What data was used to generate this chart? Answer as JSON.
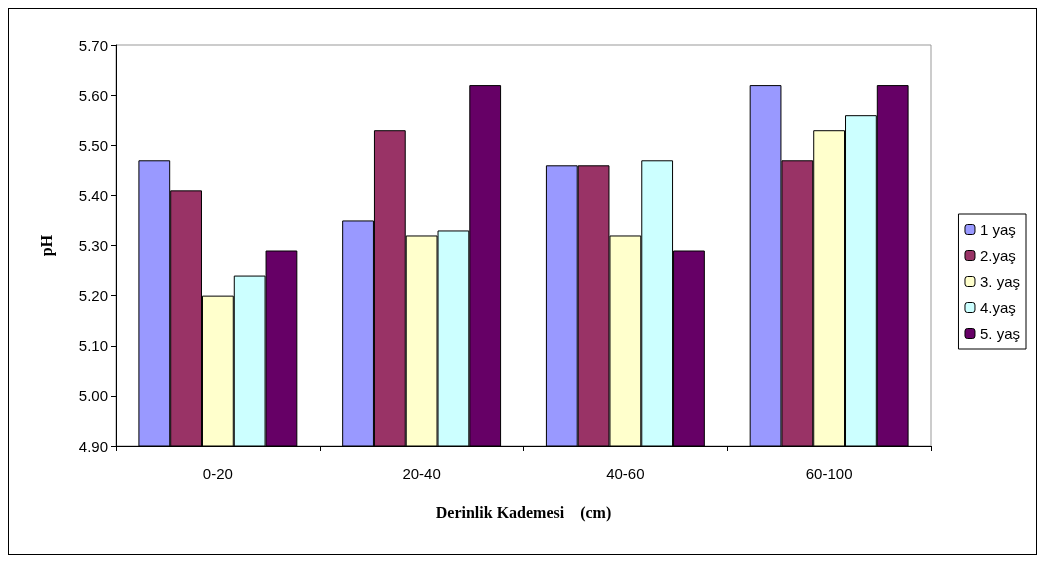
{
  "chart_data": {
    "type": "bar",
    "xlabel": "Derinlik Kademesi    (cm)",
    "ylabel": "pH",
    "categories": [
      "0-20",
      "20-40",
      "40-60",
      "60-100"
    ],
    "series": [
      {
        "name": "1 yaş",
        "color": "#9999ff",
        "values": [
          5.47,
          5.35,
          5.46,
          5.62
        ]
      },
      {
        "name": "2.yaş",
        "color": "#993366",
        "values": [
          5.41,
          5.53,
          5.46,
          5.47
        ]
      },
      {
        "name": "3. yaş",
        "color": "#ffffcc",
        "values": [
          5.2,
          5.32,
          5.32,
          5.53
        ]
      },
      {
        "name": "4.yaş",
        "color": "#ccffff",
        "values": [
          5.24,
          5.33,
          5.47,
          5.56
        ]
      },
      {
        "name": "5. yaş",
        "color": "#660066",
        "values": [
          5.29,
          5.62,
          5.29,
          5.62
        ]
      }
    ],
    "ylim": [
      4.9,
      5.7
    ],
    "yticks": [
      {
        "value": 4.9,
        "label": "4.90"
      },
      {
        "value": 5.0,
        "label": "5.00"
      },
      {
        "value": 5.1,
        "label": "5.10"
      },
      {
        "value": 5.2,
        "label": "5.20"
      },
      {
        "value": 5.3,
        "label": "5.30"
      },
      {
        "value": 5.4,
        "label": "5.40"
      },
      {
        "value": 5.5,
        "label": "5.50"
      },
      {
        "value": 5.6,
        "label": "5.60"
      },
      {
        "value": 5.7,
        "label": "5.70"
      }
    ],
    "grid": false,
    "legend": "right"
  }
}
